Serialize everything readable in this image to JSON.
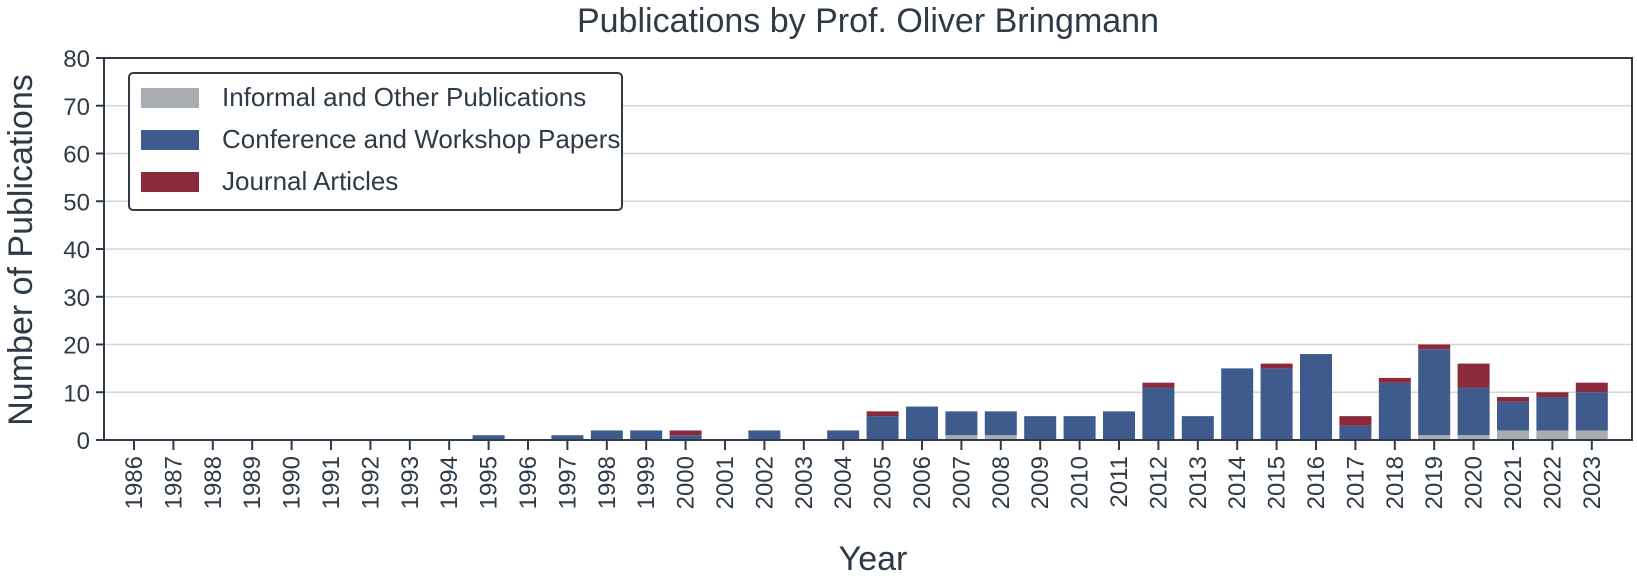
{
  "chart_data": {
    "type": "bar",
    "stacked": true,
    "title": "Publications by Prof. Oliver Bringmann",
    "xlabel": "Year",
    "ylabel": "Number of Publications",
    "ylim": [
      0,
      80
    ],
    "yticks": [
      0,
      10,
      20,
      30,
      40,
      50,
      60,
      70,
      80
    ],
    "grid": "horizontal",
    "legend_position": "top-left",
    "categories": [
      "1986",
      "1987",
      "1988",
      "1989",
      "1990",
      "1991",
      "1992",
      "1993",
      "1994",
      "1995",
      "1996",
      "1997",
      "1998",
      "1999",
      "2000",
      "2001",
      "2002",
      "2003",
      "2004",
      "2005",
      "2006",
      "2007",
      "2008",
      "2009",
      "2010",
      "2011",
      "2012",
      "2013",
      "2014",
      "2015",
      "2016",
      "2017",
      "2018",
      "2019",
      "2020",
      "2021",
      "2022",
      "2023"
    ],
    "series": [
      {
        "name": "Informal and Other Publications",
        "color": "#a9acb1",
        "values": [
          0,
          0,
          0,
          0,
          0,
          0,
          0,
          0,
          0,
          0,
          0,
          0,
          0,
          0,
          0,
          0,
          0,
          0,
          0,
          0,
          0,
          1,
          1,
          0,
          0,
          0,
          0,
          0,
          0,
          0,
          0,
          0,
          0,
          1,
          1,
          2,
          2,
          2
        ]
      },
      {
        "name": "Conference and Workshop Papers",
        "color": "#3f5a8c",
        "values": [
          0,
          0,
          0,
          0,
          0,
          0,
          0,
          0,
          0,
          1,
          0,
          1,
          2,
          2,
          1,
          0,
          2,
          0,
          2,
          5,
          7,
          5,
          5,
          5,
          5,
          6,
          11,
          5,
          15,
          15,
          18,
          3,
          12,
          18,
          10,
          6,
          7,
          8
        ]
      },
      {
        "name": "Journal Articles",
        "color": "#8b2a3a",
        "values": [
          0,
          0,
          0,
          0,
          0,
          0,
          0,
          0,
          0,
          0,
          0,
          0,
          0,
          0,
          1,
          0,
          0,
          0,
          0,
          1,
          0,
          0,
          0,
          0,
          0,
          0,
          1,
          0,
          0,
          1,
          0,
          2,
          1,
          1,
          5,
          1,
          1,
          2
        ]
      }
    ]
  }
}
